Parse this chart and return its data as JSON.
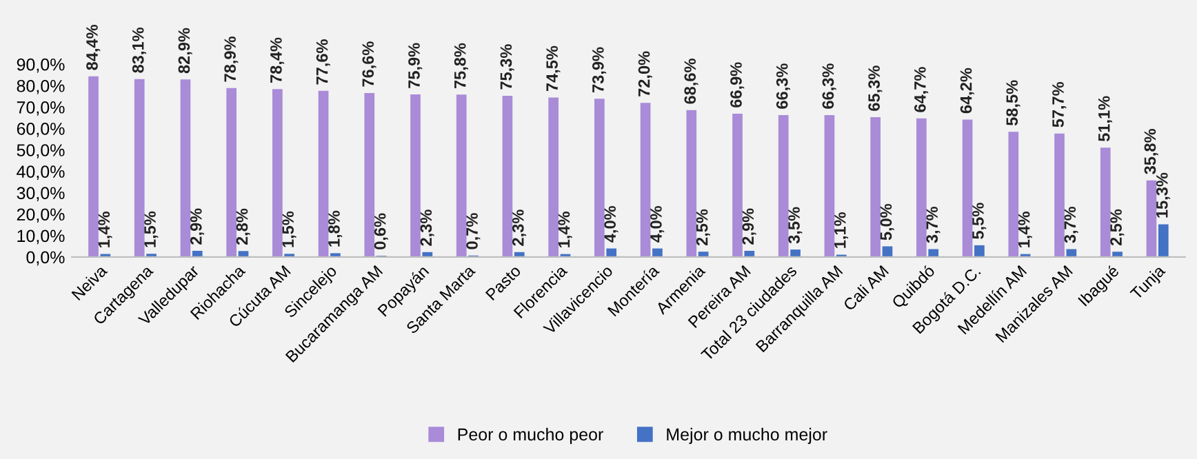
{
  "chart_data": {
    "type": "bar",
    "categories": [
      "Neiva",
      "Cartagena",
      "Valledupar",
      "Riohacha",
      "Cúcuta AM",
      "Sincelejo",
      "Bucaramanga AM",
      "Popayán",
      "Santa Marta",
      "Pasto",
      "Florencia",
      "Villavicencio",
      "Montería",
      "Armenia",
      "Pereira AM",
      "Total 23 ciudades",
      "Barranquilla AM",
      "Cali AM",
      "Quibdó",
      "Bogotá D.C.",
      "Medellín AM",
      "Manizales AM",
      "Ibagué",
      "Tunja"
    ],
    "series": [
      {
        "name": "Peor o mucho peor",
        "color": "#a98bd8",
        "values": [
          84.4,
          83.1,
          82.9,
          78.9,
          78.4,
          77.6,
          76.6,
          75.9,
          75.8,
          75.3,
          74.5,
          73.9,
          72.0,
          68.6,
          66.9,
          66.3,
          66.3,
          65.3,
          64.7,
          64.2,
          58.5,
          57.7,
          51.1,
          35.8
        ],
        "value_labels": [
          "84,4%",
          "83,1%",
          "82,9%",
          "78,9%",
          "78,4%",
          "77,6%",
          "76,6%",
          "75,9%",
          "75,8%",
          "75,3%",
          "74,5%",
          "73,9%",
          "72,0%",
          "68,6%",
          "66,9%",
          "66,3%",
          "66,3%",
          "65,3%",
          "64,7%",
          "64,2%",
          "58,5%",
          "57,7%",
          "51,1%",
          "35,8%"
        ]
      },
      {
        "name": "Mejor o mucho mejor",
        "color": "#4472c4",
        "values": [
          1.4,
          1.5,
          2.9,
          2.8,
          1.5,
          1.8,
          0.6,
          2.3,
          0.7,
          2.3,
          1.4,
          4.0,
          4.0,
          2.5,
          2.9,
          3.5,
          1.1,
          5.0,
          3.7,
          5.5,
          1.4,
          3.7,
          2.5,
          15.3
        ],
        "value_labels": [
          "1,4%",
          "1,5%",
          "2,9%",
          "2,8%",
          "1,5%",
          "1,8%",
          "0,6%",
          "2,3%",
          "0,7%",
          "2,3%",
          "1,4%",
          "4,0%",
          "4,0%",
          "2,5%",
          "2,9%",
          "3,5%",
          "1,1%",
          "5,0%",
          "3,7%",
          "5,5%",
          "1,4%",
          "3,7%",
          "2,5%",
          "15,3%"
        ]
      }
    ],
    "ylim": [
      0,
      90
    ],
    "yticks": [
      {
        "value": 0,
        "label": "0,0%"
      },
      {
        "value": 10,
        "label": "10,0%"
      },
      {
        "value": 20,
        "label": "20,0%"
      },
      {
        "value": 30,
        "label": "30,0%"
      },
      {
        "value": 40,
        "label": "40,0%"
      },
      {
        "value": 50,
        "label": "50,0%"
      },
      {
        "value": 60,
        "label": "60,0%"
      },
      {
        "value": 70,
        "label": "70,0%"
      },
      {
        "value": 80,
        "label": "80,0%"
      },
      {
        "value": 90,
        "label": "90,0%"
      }
    ],
    "grid": false,
    "legend": "bottom"
  }
}
